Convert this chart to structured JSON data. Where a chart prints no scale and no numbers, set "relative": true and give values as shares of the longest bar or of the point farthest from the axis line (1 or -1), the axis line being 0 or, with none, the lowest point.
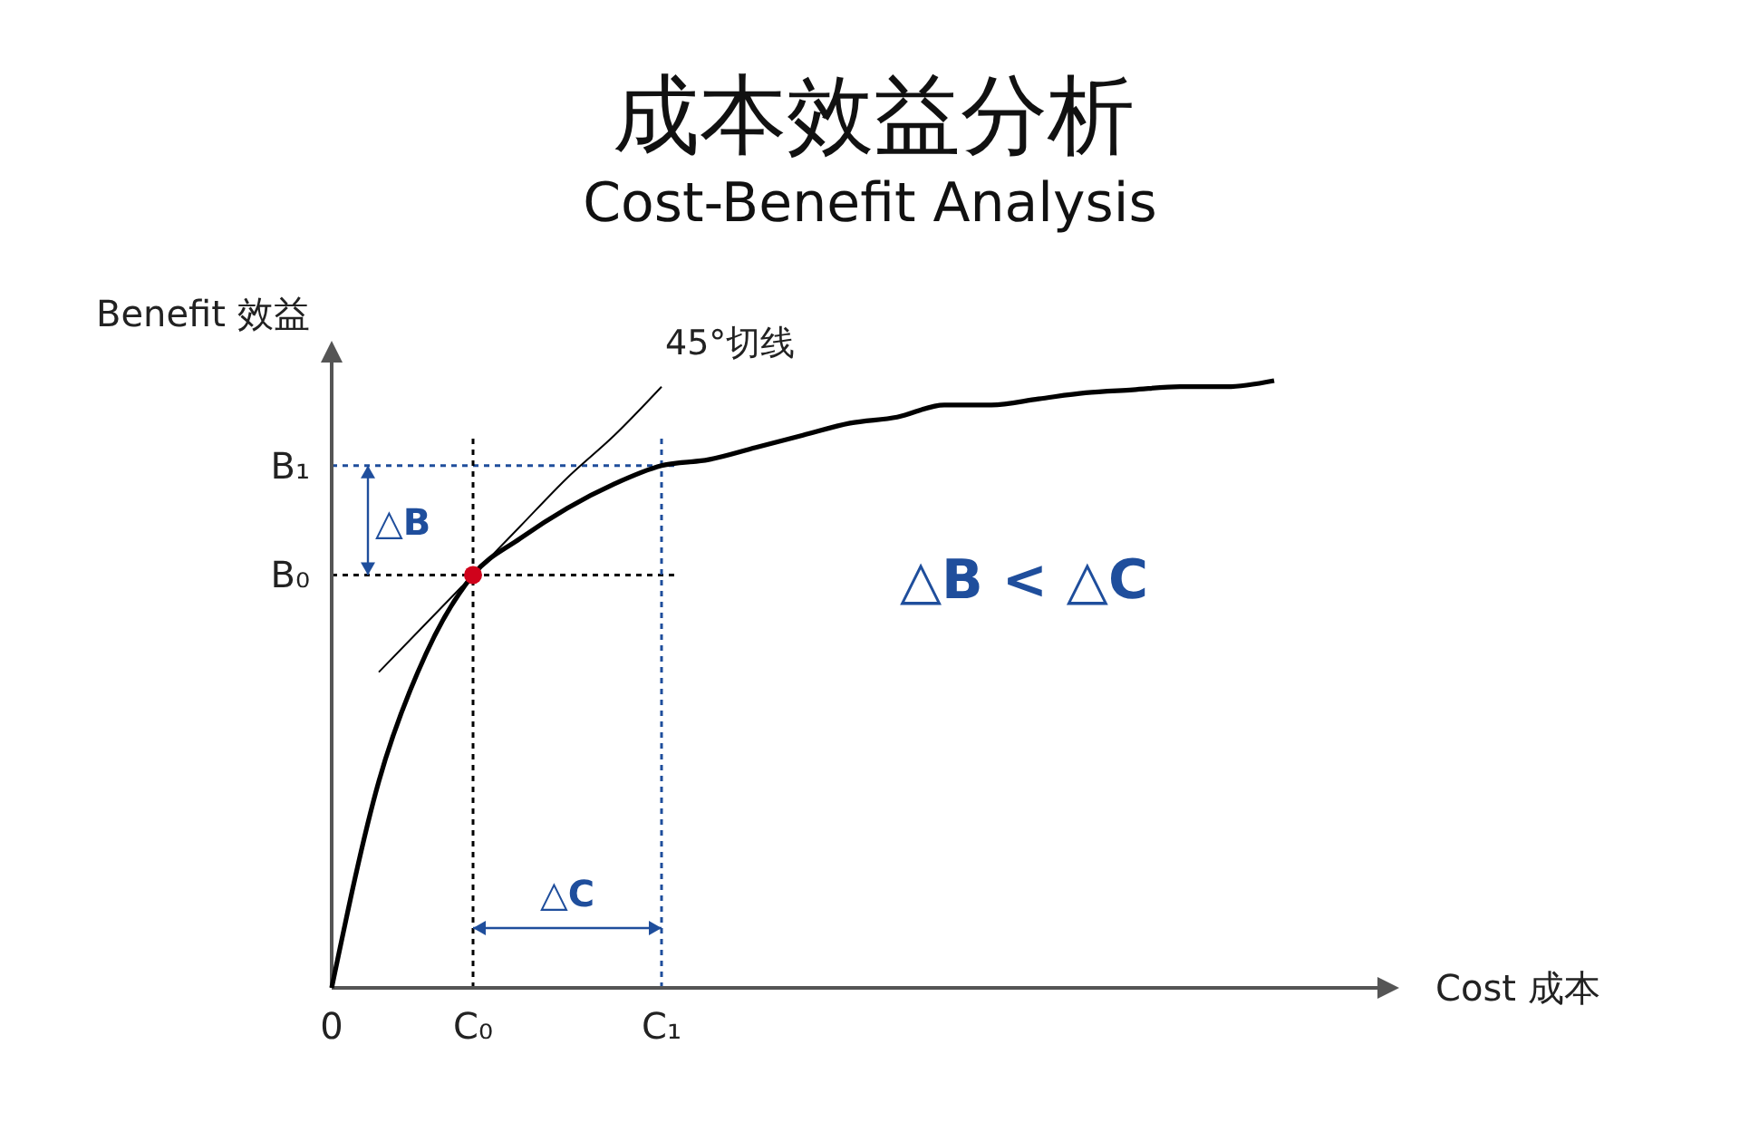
{
  "chart_data": {
    "type": "line",
    "title": "成本效益分析",
    "subtitle": "Cost-Benefit Analysis",
    "xlabel": "Cost 成本",
    "ylabel": "Benefit 效益",
    "relative": true,
    "categories": [
      "0",
      null,
      null,
      "C₀",
      null,
      null,
      null,
      "C₁",
      null,
      null,
      null,
      null,
      null,
      null,
      null,
      null,
      null,
      null,
      null,
      null,
      null,
      null,
      null
    ],
    "series": [
      {
        "color": "#000000",
        "values": [
          0,
          0.34,
          0.55,
          0.68,
          0.74,
          0.79,
          0.83,
          0.86,
          0.87,
          0.89,
          0.91,
          0.93,
          0.94,
          0.96,
          0.96,
          0.97,
          0.98,
          0.985,
          0.99,
          0.99,
          1.0,
          null,
          null
        ]
      },
      {
        "name": "45°切线",
        "color": "#000000",
        "values": [
          null,
          0.52,
          0.6,
          0.68,
          0.76,
          0.84,
          0.91,
          0.99,
          null,
          null,
          null,
          null,
          null,
          null,
          null,
          null,
          null,
          null,
          null,
          null,
          null,
          null,
          null
        ]
      },
      {
        "type": "scatter",
        "color": "#d0021b",
        "marker": "circle",
        "values": [
          null,
          null,
          null,
          0.68,
          null,
          null,
          null,
          null,
          null,
          null,
          null,
          null,
          null,
          null,
          null,
          null,
          null,
          null,
          null,
          null,
          null,
          null,
          null
        ]
      }
    ],
    "ref_lines": [
      {
        "axis": "y",
        "value": 0.68,
        "label": "B₀",
        "color": "#000000",
        "line_style": "dotted"
      },
      {
        "axis": "y",
        "value": 0.86,
        "label": "B₁",
        "color": "#1f4e9c",
        "line_style": "dotted"
      },
      {
        "axis": "x",
        "value": "C₀",
        "color": "#000000",
        "line_style": "dotted"
      },
      {
        "axis": "x",
        "value": "C₁",
        "color": "#1f4e9c",
        "line_style": "dotted"
      }
    ],
    "annotations": [
      "△B",
      "△C",
      "△B < △C"
    ]
  }
}
